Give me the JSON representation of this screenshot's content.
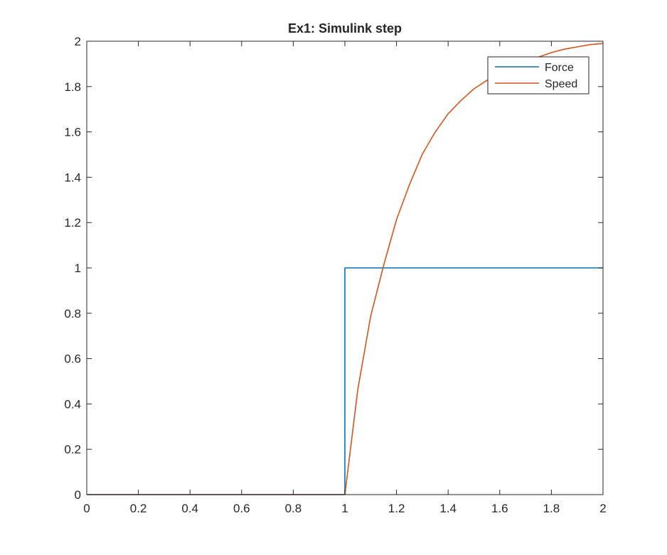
{
  "chart_data": {
    "type": "line",
    "title": "Ex1: Simulink step",
    "xlabel": "",
    "ylabel": "",
    "xlim": [
      0,
      2
    ],
    "ylim": [
      0,
      2
    ],
    "xticks": [
      0,
      0.2,
      0.4,
      0.6,
      0.8,
      1,
      1.2,
      1.4,
      1.6,
      1.8,
      2
    ],
    "yticks": [
      0,
      0.2,
      0.4,
      0.6,
      0.8,
      1,
      1.2,
      1.4,
      1.6,
      1.8,
      2
    ],
    "xtick_labels": [
      "0",
      "0.2",
      "0.4",
      "0.6",
      "0.8",
      "1",
      "1.2",
      "1.4",
      "1.6",
      "1.8",
      "2"
    ],
    "ytick_labels": [
      "0",
      "0.2",
      "0.4",
      "0.6",
      "0.8",
      "1",
      "1.2",
      "1.4",
      "1.6",
      "1.8",
      "2"
    ],
    "grid": false,
    "legend_position": "top-right",
    "series": [
      {
        "name": "Force",
        "color": "#0072BD",
        "x": [
          0,
          1,
          1,
          2
        ],
        "y": [
          0,
          0,
          1,
          1
        ]
      },
      {
        "name": "Speed",
        "color": "#D95319",
        "x": [
          0,
          1,
          1.05,
          1.1,
          1.15,
          1.2,
          1.25,
          1.3,
          1.35,
          1.4,
          1.45,
          1.5,
          1.55,
          1.6,
          1.65,
          1.7,
          1.75,
          1.8,
          1.85,
          1.9,
          1.95,
          2
        ],
        "y": [
          0,
          0,
          0.464,
          0.787,
          1.011,
          1.213,
          1.367,
          1.502,
          1.599,
          1.68,
          1.739,
          1.79,
          1.827,
          1.858,
          1.89,
          1.91,
          1.93,
          1.95,
          1.965,
          1.975,
          1.985,
          1.99
        ]
      }
    ]
  }
}
